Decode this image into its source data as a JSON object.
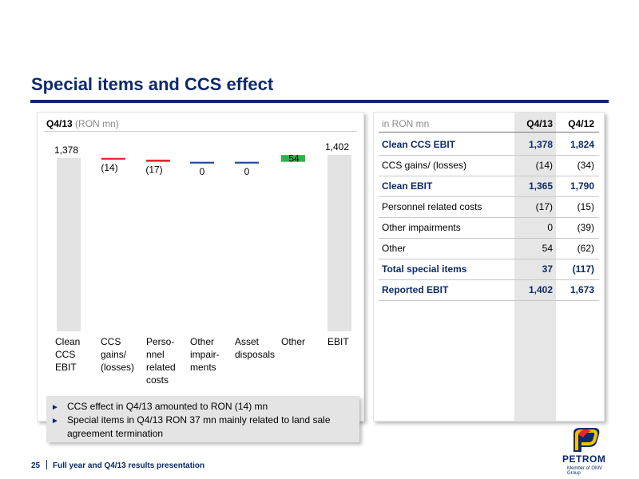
{
  "title": "Special items and CCS effect",
  "left_panel": {
    "period_bold": "Q4/13",
    "period_unit": "(RON mn)"
  },
  "chart_data": {
    "type": "waterfall",
    "categories": [
      "Clean\nCCS\nEBIT",
      "CCS\ngains/\n(losses)",
      "Perso-\nnnel\nrelated\ncosts",
      "Other\nimpair-\nments",
      "Asset\ndisposals",
      "Other",
      "EBIT"
    ],
    "values": [
      1378,
      -14,
      -17,
      0,
      0,
      54,
      1402
    ],
    "value_labels": [
      "1,378",
      "(14)",
      "(17)",
      "0",
      "0",
      "54",
      "1,402"
    ],
    "kinds": [
      "total",
      "delta",
      "delta",
      "delta",
      "delta",
      "delta",
      "total"
    ],
    "colors": {
      "total": "#e3e3e3",
      "negative": "#e8262b",
      "positive": "#2db34a",
      "neutral": "#1f4e9c"
    }
  },
  "bullets": [
    "CCS effect in Q4/13 amounted to RON (14) mn",
    "Special items in Q4/13 RON 37 mn mainly related to land sale agreement termination"
  ],
  "table": {
    "unit": "in RON mn",
    "columns": [
      "Q4/13",
      "Q4/12"
    ],
    "rows": [
      {
        "label": "Clean CCS EBIT",
        "v1": "1,378",
        "v2": "1,824",
        "bold": true
      },
      {
        "label": "CCS gains/ (losses)",
        "v1": "(14)",
        "v2": "(34)",
        "bold": false
      },
      {
        "label": "Clean EBIT",
        "v1": "1,365",
        "v2": "1,790",
        "bold": true
      },
      {
        "label": "Personnel related costs",
        "v1": "(17)",
        "v2": "(15)",
        "bold": false
      },
      {
        "label": "Other impairments",
        "v1": "0",
        "v2": "(39)",
        "bold": false
      },
      {
        "label": "Other",
        "v1": "54",
        "v2": "(62)",
        "bold": false
      },
      {
        "label": "Total special items",
        "v1": "37",
        "v2": "(117)",
        "bold": true
      },
      {
        "label": "Reported EBIT",
        "v1": "1,402",
        "v2": "1,673",
        "bold": true
      }
    ]
  },
  "footer": {
    "page_number": "25",
    "text": "Full year and Q4/13 results presentation"
  },
  "logo": {
    "brand": "PETROM",
    "member": "Member of OMV Group",
    "colors": {
      "red": "#e8262b",
      "yellow": "#f6c300",
      "navy": "#0c2a6b"
    }
  }
}
